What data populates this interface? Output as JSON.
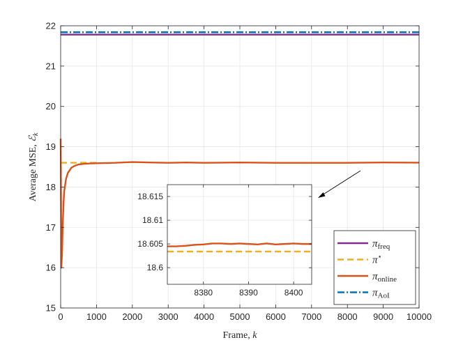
{
  "chart_data": {
    "type": "line",
    "xlabel": "Frame, ",
    "xlabel_var": "k",
    "ylabel": "Average MSE, ",
    "ylabel_var": "ℰ",
    "ylabel_sub": "k",
    "xlim": [
      0,
      10000
    ],
    "ylim": [
      15,
      22
    ],
    "x_ticks": [
      0,
      1000,
      2000,
      3000,
      4000,
      5000,
      6000,
      7000,
      8000,
      9000,
      10000
    ],
    "x_tick_labels": [
      "0",
      "1000",
      "2000",
      "3000",
      "4000",
      "5000",
      "6000",
      "7000",
      "8000",
      "9000",
      "10000"
    ],
    "y_ticks": [
      15,
      16,
      17,
      18,
      19,
      20,
      21,
      22
    ],
    "y_tick_labels": [
      "15",
      "16",
      "17",
      "18",
      "19",
      "20",
      "21",
      "22"
    ],
    "grid": true,
    "legend_position": "bottom-right",
    "series": [
      {
        "name": "π",
        "name_sub": "freq",
        "color": "#7E2F8E",
        "dash": "solid",
        "x": [
          0,
          10000
        ],
        "y": [
          21.78,
          21.78
        ]
      },
      {
        "name": "π",
        "name_sup": "⋆",
        "color": "#EDB120",
        "dash": "dashed",
        "x": [
          0,
          1050
        ],
        "y": [
          18.6034,
          18.6034
        ]
      },
      {
        "name": "π",
        "name_sub": "online",
        "color": "#D95319",
        "dash": "solid",
        "x": [
          0,
          20,
          40,
          60,
          80,
          100,
          150,
          200,
          300,
          400,
          500,
          700,
          1000,
          1500,
          2000,
          2500,
          3000,
          3500,
          4000,
          5000,
          6000,
          7000,
          8000,
          9000,
          10000
        ],
        "y": [
          19.2,
          16.0,
          16.4,
          17.1,
          17.6,
          17.9,
          18.2,
          18.35,
          18.48,
          18.53,
          18.56,
          18.58,
          18.59,
          18.6,
          18.62,
          18.61,
          18.6,
          18.61,
          18.6,
          18.61,
          18.6,
          18.6,
          18.6,
          18.61,
          18.605
        ]
      },
      {
        "name": "π",
        "name_sub": "AoI",
        "color": "#0072BD",
        "dash": "dashdot",
        "x": [
          0,
          10000
        ],
        "y": [
          21.84,
          21.84
        ]
      }
    ],
    "inset": {
      "xlim": [
        8372,
        8404
      ],
      "ylim": [
        18.5965,
        18.6175
      ],
      "x_ticks": [
        8380,
        8390,
        8400
      ],
      "x_tick_labels": [
        "8380",
        "8390",
        "8400"
      ],
      "y_ticks": [
        18.6,
        18.605,
        18.61,
        18.615
      ],
      "y_tick_labels": [
        "18.6",
        "18.605",
        "18.61",
        "18.615"
      ],
      "grid": true,
      "series": [
        {
          "color": "#EDB120",
          "dash": "dashed",
          "x": [
            8372,
            8404
          ],
          "y": [
            18.6034,
            18.6034
          ]
        },
        {
          "color": "#D95319",
          "dash": "solid",
          "x": [
            8372,
            8374,
            8376,
            8378,
            8380,
            8382,
            8384,
            8386,
            8388,
            8390,
            8392,
            8394,
            8396,
            8398,
            8400,
            8402,
            8404
          ],
          "y": [
            18.6045,
            18.6045,
            18.6046,
            18.6048,
            18.6049,
            18.6051,
            18.6051,
            18.605,
            18.6051,
            18.605,
            18.6049,
            18.6051,
            18.6049,
            18.605,
            18.6051,
            18.605,
            18.605
          ]
        }
      ]
    }
  }
}
